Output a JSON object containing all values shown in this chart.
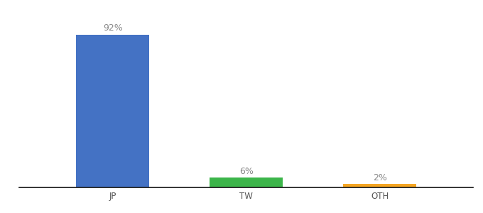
{
  "categories": [
    "JP",
    "TW",
    "OTH"
  ],
  "values": [
    92,
    6,
    2
  ],
  "labels": [
    "92%",
    "6%",
    "2%"
  ],
  "bar_colors": [
    "#4472C4",
    "#3CB54A",
    "#F5A623"
  ],
  "background_color": "#ffffff",
  "ylim": [
    0,
    100
  ],
  "bar_width": 0.55,
  "label_fontsize": 9,
  "tick_fontsize": 8.5,
  "label_color": "#888888"
}
